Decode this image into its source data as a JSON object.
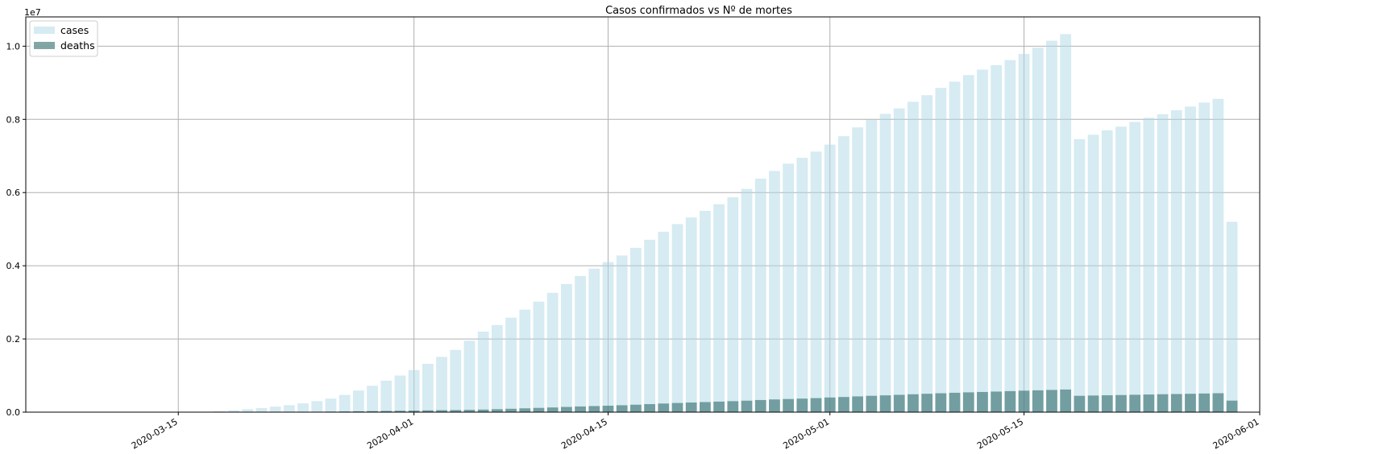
{
  "chart_data": {
    "type": "bar",
    "title": "Casos confirmados vs Nº de mortes",
    "xlabel": "",
    "ylabel": "",
    "scale_label": "1e7",
    "grid": true,
    "legend_position": "top-left",
    "xlim": [
      "2020-03-04",
      "2020-06-01"
    ],
    "ylim": [
      0,
      10800000
    ],
    "x_ticks": [
      "2020-03-15",
      "2020-04-01",
      "2020-04-15",
      "2020-05-01",
      "2020-05-15",
      "2020-06-01"
    ],
    "y_ticks": [
      0,
      2000000,
      4000000,
      6000000,
      8000000,
      10000000
    ],
    "y_tick_labels": [
      "0.0",
      "0.2",
      "0.4",
      "0.6",
      "0.8",
      "1.0"
    ],
    "start_date": "2020-03-16",
    "series": [
      {
        "name": "cases",
        "color": "#add8e6",
        "values": [
          2000,
          8000,
          25000,
          50000,
          80000,
          110000,
          150000,
          190000,
          240000,
          300000,
          370000,
          470000,
          590000,
          720000,
          860000,
          1000000,
          1150000,
          1320000,
          1510000,
          1700000,
          1950000,
          2200000,
          2380000,
          2580000,
          2800000,
          3020000,
          3260000,
          3500000,
          3720000,
          3920000,
          4100000,
          4280000,
          4490000,
          4710000,
          4930000,
          5140000,
          5320000,
          5500000,
          5680000,
          5870000,
          6100000,
          6380000,
          6590000,
          6790000,
          6950000,
          7120000,
          7310000,
          7540000,
          7780000,
          7990000,
          8150000,
          8300000,
          8480000,
          8660000,
          8860000,
          9030000,
          9210000,
          9360000,
          9480000,
          9620000,
          9790000,
          9960000,
          10150000,
          10330000,
          7460000,
          7580000,
          7700000,
          7800000,
          7930000,
          8040000,
          8140000,
          8250000,
          8350000,
          8460000,
          8560000,
          5200000
        ]
      },
      {
        "name": "deaths",
        "color": "#2f6b6b",
        "values": [
          0,
          200,
          800,
          2000,
          3000,
          4000,
          5000,
          6500,
          8500,
          11000,
          14000,
          18000,
          23000,
          28000,
          33000,
          38000,
          43000,
          48000,
          53000,
          57000,
          63000,
          70000,
          81000,
          92000,
          104000,
          116000,
          128000,
          142000,
          155000,
          166000,
          176000,
          188000,
          203000,
          219000,
          235000,
          250000,
          263000,
          275000,
          288000,
          300000,
          313000,
          331000,
          347000,
          359000,
          370000,
          384000,
          400000,
          414000,
          430000,
          446000,
          459000,
          473000,
          488000,
          502000,
          516000,
          529000,
          541000,
          551000,
          562000,
          574000,
          587000,
          596000,
          607000,
          618000,
          446000,
          454000,
          461000,
          467000,
          475000,
          482000,
          489000,
          495000,
          502000,
          509000,
          517000,
          315000
        ]
      }
    ]
  }
}
